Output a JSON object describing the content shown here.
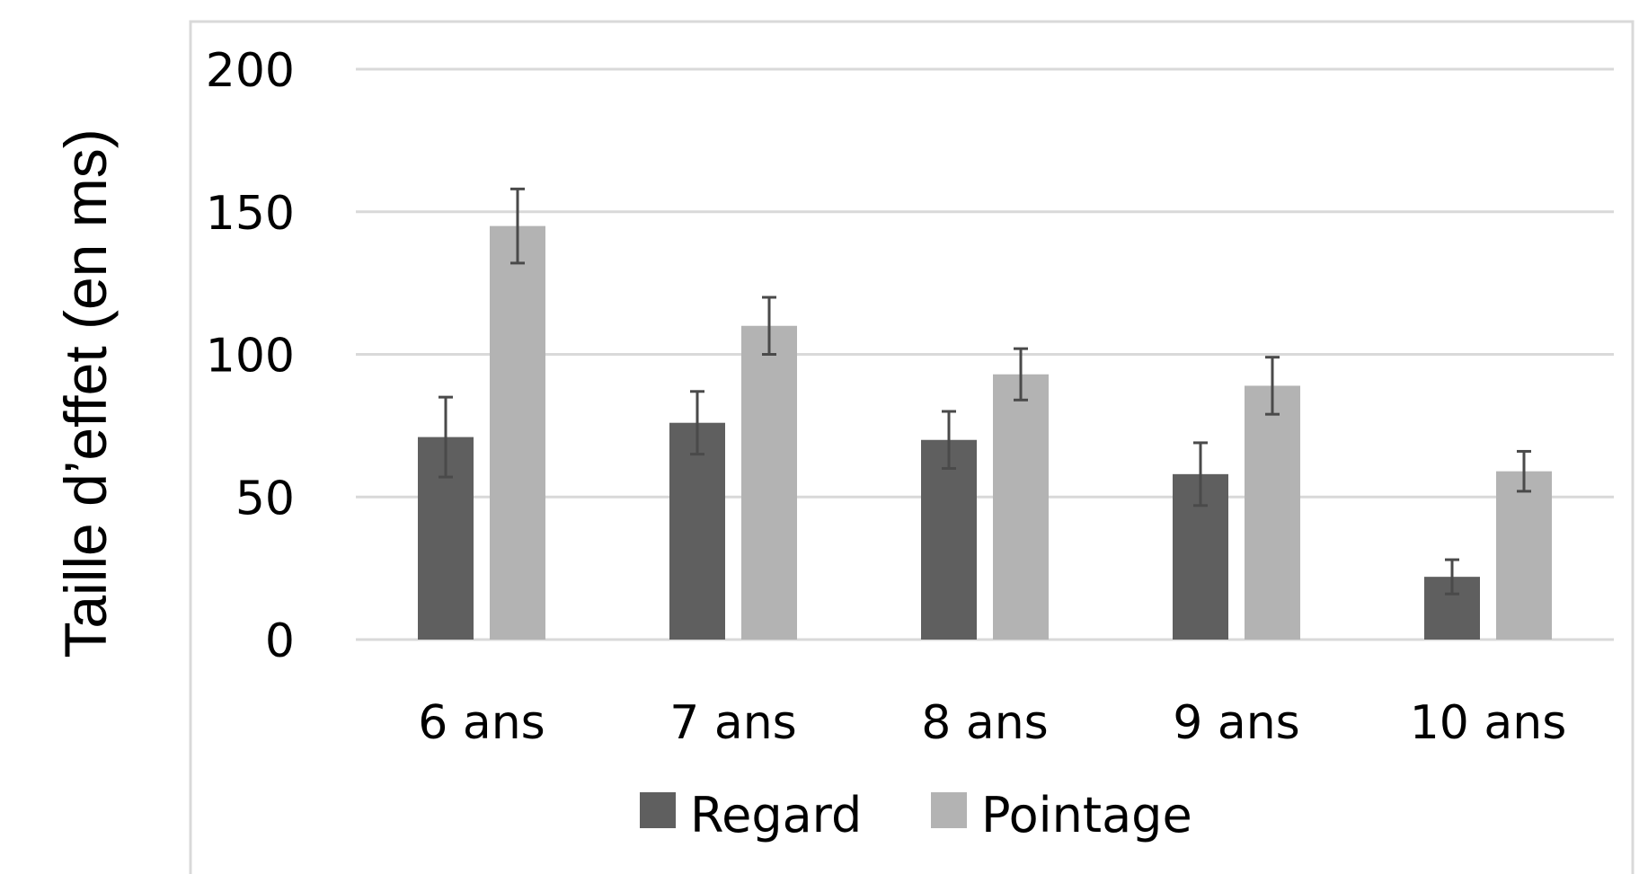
{
  "chart_data": {
    "type": "bar",
    "ylabel": "Taille d’effet (en ms)",
    "xlabel": "",
    "title": "",
    "ylim": [
      0,
      200
    ],
    "yticks": [
      "0",
      "50",
      "100",
      "150",
      "200"
    ],
    "grid": true,
    "legend_position": "bottom",
    "categories": [
      "6 ans",
      "7 ans",
      "8 ans",
      "9 ans",
      "10 ans"
    ],
    "series": [
      {
        "name": "Regard",
        "color": "#5f5f5f",
        "values": [
          71,
          76,
          70,
          58,
          22
        ],
        "errors": [
          14,
          11,
          10,
          11,
          6
        ]
      },
      {
        "name": "Pointage",
        "color": "#b3b3b3",
        "values": [
          145,
          110,
          93,
          89,
          59
        ],
        "errors": [
          13,
          10,
          9,
          10,
          7
        ]
      }
    ],
    "error_bar_color": "#4a4a4a",
    "grid_color": "#d9d9d9",
    "frame_color": "#d9d9d9"
  }
}
